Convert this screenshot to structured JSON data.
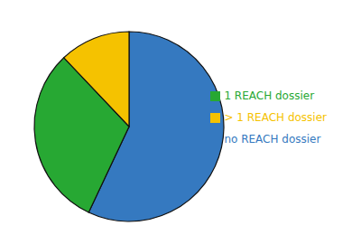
{
  "chart_data": {
    "type": "pie",
    "categories": [
      "no REACH dossier",
      "1 REACH dossier",
      "> 1 REACH dossier"
    ],
    "values": [
      118,
      64,
      25
    ],
    "colors": [
      "#3579c0",
      "#27a833",
      "#f5c200"
    ],
    "legend": "right"
  }
}
